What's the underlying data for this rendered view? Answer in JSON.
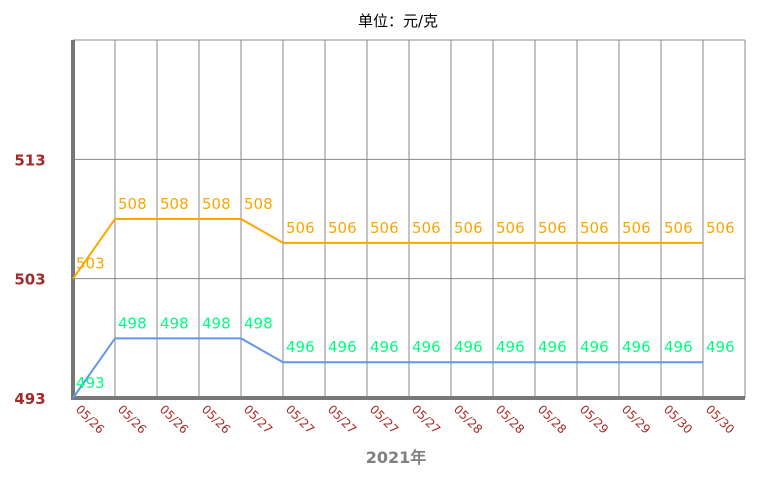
{
  "chart_data": {
    "type": "line",
    "title": "单位：元/克",
    "xlabel": "2021年",
    "ylabel": "",
    "categories": [
      "05/26",
      "05/26",
      "05/26",
      "05/26",
      "05/27",
      "05/27",
      "05/27",
      "05/27",
      "05/27",
      "05/28",
      "05/28",
      "05/28",
      "05/29",
      "05/29",
      "05/30",
      "05/30"
    ],
    "yticks": [
      493,
      503,
      513
    ],
    "ylim": [
      493,
      523
    ],
    "grid": true,
    "series": [
      {
        "color": "#ffa500",
        "label_color": "#ffa500",
        "values": [
          503,
          508,
          508,
          508,
          508,
          506,
          506,
          506,
          506,
          506,
          506,
          506,
          506,
          506,
          506,
          506
        ]
      },
      {
        "color": "#6495ed",
        "label_color": "#00ff7f",
        "values": [
          493,
          498,
          498,
          498,
          498,
          496,
          496,
          496,
          496,
          496,
          496,
          496,
          496,
          496,
          496,
          496
        ]
      }
    ],
    "colors": {
      "ytick": "#a52a2a",
      "xtick": "#a52a2a",
      "grid": "#888888",
      "axis": "#777777",
      "title": "#000000",
      "xlabel": "#808080"
    }
  }
}
